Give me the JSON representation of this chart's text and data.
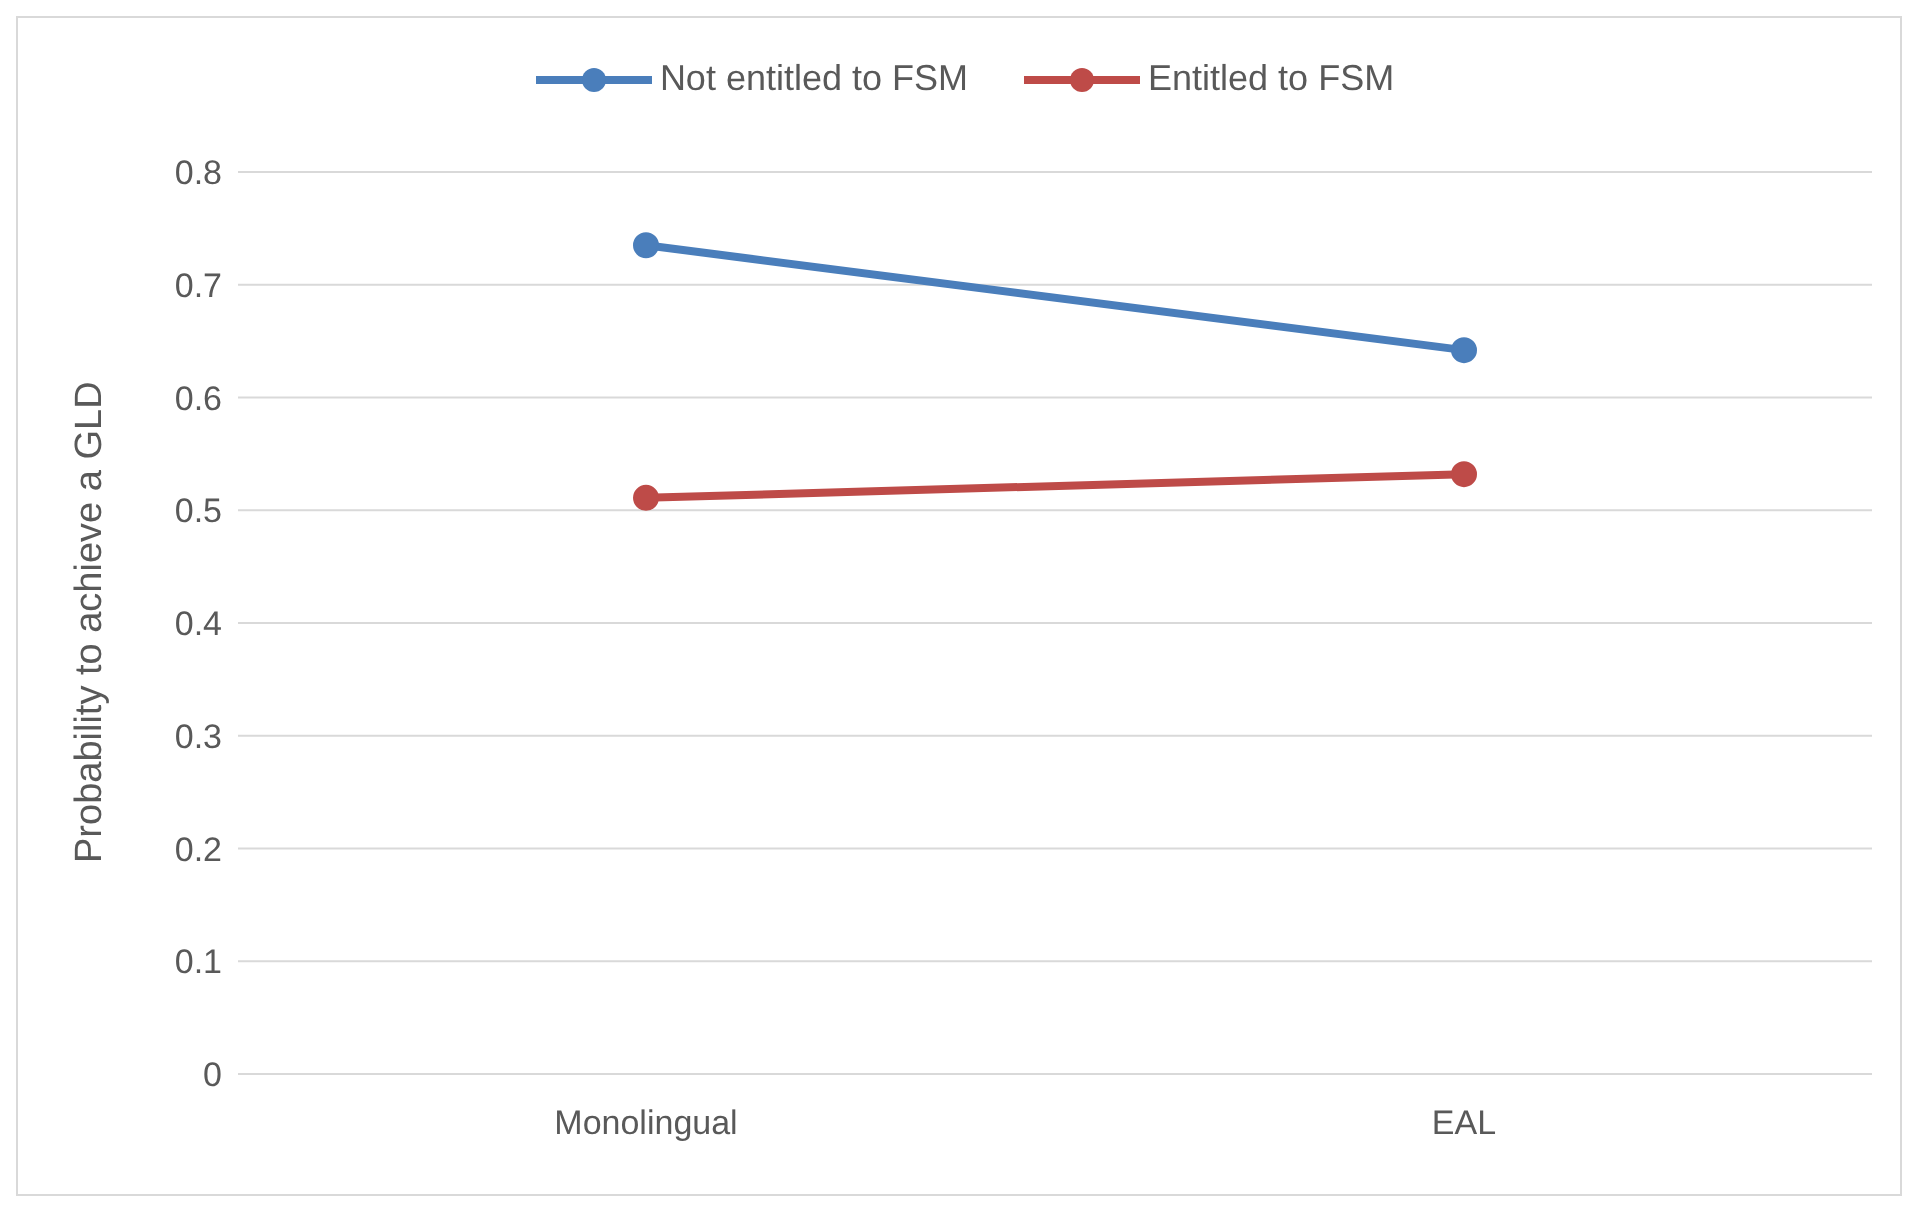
{
  "chart_data": {
    "type": "line",
    "ylabel": "Probability to achieve a GLD",
    "categories": [
      "Monolingual",
      "EAL"
    ],
    "series": [
      {
        "name": "Not entitled to FSM",
        "color": "#4a7ebb",
        "values": [
          0.735,
          0.642
        ]
      },
      {
        "name": "Entitled to FSM",
        "color": "#be4b48",
        "values": [
          0.511,
          0.532
        ]
      }
    ],
    "ylim": [
      0,
      0.8
    ],
    "yticks": [
      0,
      0.1,
      0.2,
      0.3,
      0.4,
      0.5,
      0.6,
      0.7,
      0.8
    ],
    "grid": "y",
    "legend": "top",
    "marker": "circle",
    "line_style": "solid"
  }
}
